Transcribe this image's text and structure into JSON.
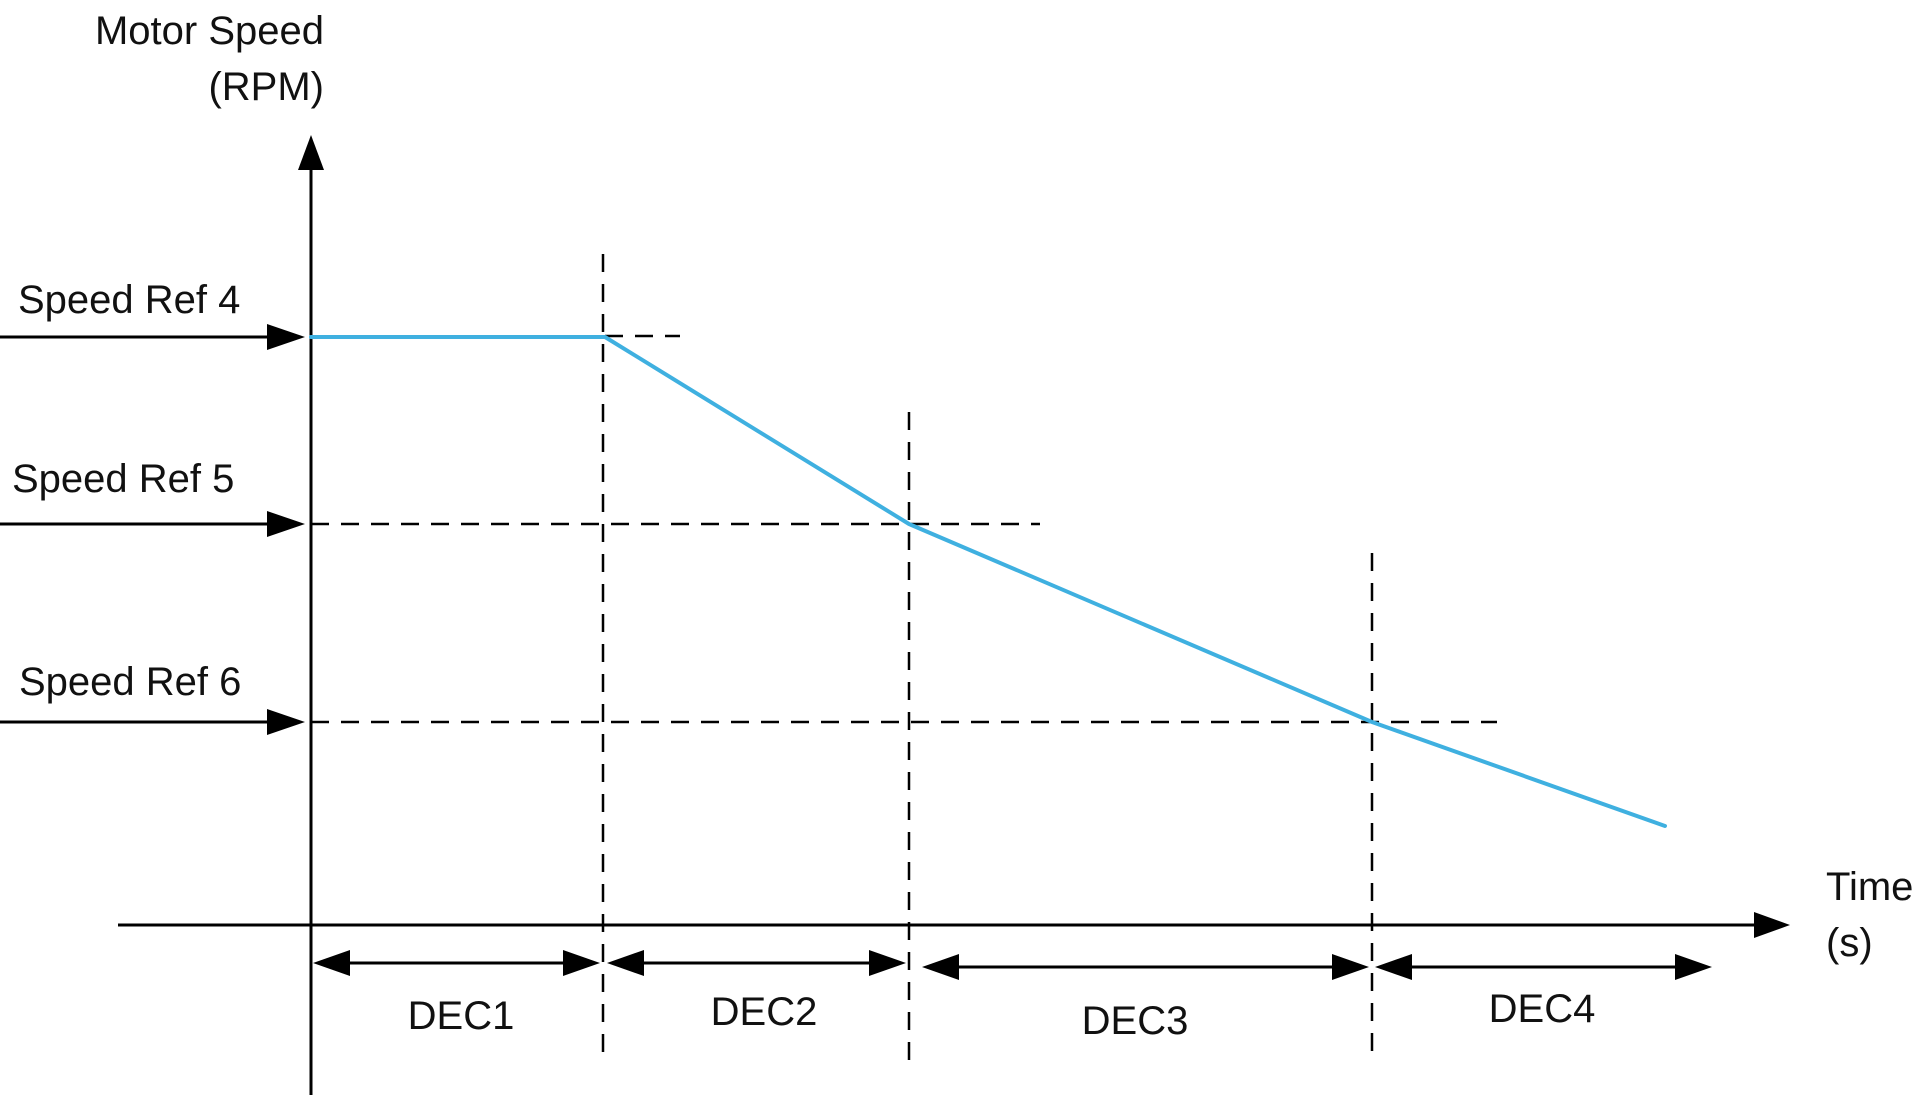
{
  "y_axis": {
    "label_line1": "Motor Speed",
    "label_line2": "(RPM)"
  },
  "x_axis": {
    "label_line1": "Time",
    "label_line2": "(s)"
  },
  "speed_refs": [
    {
      "id": "ref4",
      "label": "Speed Ref 4"
    },
    {
      "id": "ref5",
      "label": "Speed Ref 5"
    },
    {
      "id": "ref6",
      "label": "Speed Ref 6"
    }
  ],
  "segments": [
    {
      "label": "DEC1"
    },
    {
      "label": "DEC2"
    },
    {
      "label": "DEC3"
    },
    {
      "label": "DEC4"
    }
  ],
  "profile_color": "#3fb0e0"
}
